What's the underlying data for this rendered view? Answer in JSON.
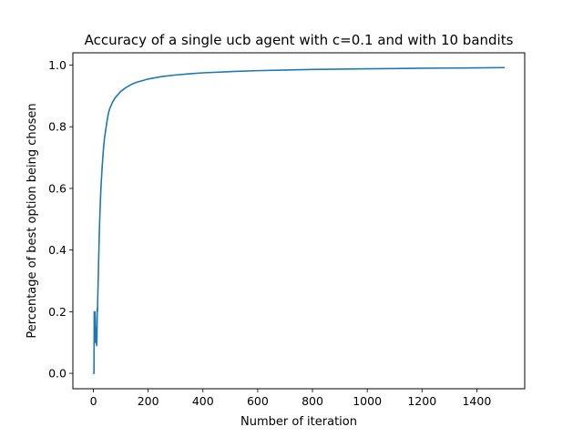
{
  "chart_data": {
    "type": "line",
    "title": "Accuracy of a single ucb agent with c=0.1 and with 10 bandits",
    "xlabel": "Number of iteration",
    "ylabel": "Percentage of best option being chosen",
    "xlim": [
      -75,
      1575
    ],
    "ylim": [
      -0.05,
      1.04
    ],
    "xticks": [
      "0",
      "200",
      "400",
      "600",
      "800",
      "1000",
      "1200",
      "1400"
    ],
    "yticks": [
      "0.0",
      "0.2",
      "0.4",
      "0.6",
      "0.8",
      "1.0"
    ],
    "grid": false,
    "series": [
      {
        "color": "#1f77b4",
        "x": [
          1,
          2,
          3,
          4,
          5,
          6,
          7,
          8,
          9,
          10,
          11,
          12,
          13,
          14,
          15,
          16,
          18,
          20,
          22,
          25,
          28,
          32,
          36,
          40,
          45,
          50,
          55,
          60,
          70,
          80,
          90,
          100,
          120,
          140,
          160,
          180,
          200,
          250,
          300,
          350,
          400,
          500,
          600,
          700,
          800,
          900,
          1000,
          1100,
          1200,
          1300,
          1400,
          1500
        ],
        "y": [
          0.0,
          0.0,
          0.2,
          0.15,
          0.19,
          0.2,
          0.17,
          0.1,
          0.13,
          0.15,
          0.11,
          0.09,
          0.12,
          0.21,
          0.2,
          0.25,
          0.32,
          0.4,
          0.47,
          0.55,
          0.61,
          0.67,
          0.72,
          0.76,
          0.79,
          0.82,
          0.845,
          0.86,
          0.88,
          0.895,
          0.905,
          0.915,
          0.928,
          0.938,
          0.945,
          0.95,
          0.955,
          0.963,
          0.968,
          0.972,
          0.975,
          0.979,
          0.982,
          0.984,
          0.986,
          0.987,
          0.988,
          0.989,
          0.99,
          0.9905,
          0.991,
          0.992
        ]
      }
    ]
  }
}
